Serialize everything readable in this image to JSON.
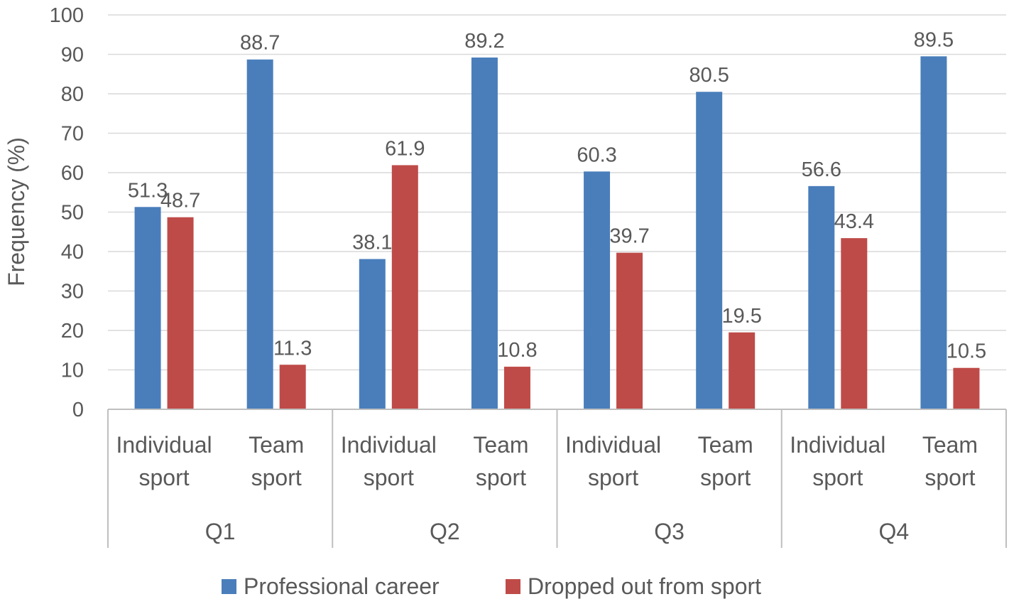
{
  "chart_data": {
    "type": "bar",
    "title": "",
    "xlabel": "",
    "ylabel": "Frequency (%)",
    "ylim": [
      0,
      100
    ],
    "yticks": [
      0,
      10,
      20,
      30,
      40,
      50,
      60,
      70,
      80,
      90,
      100
    ],
    "grid": true,
    "legend_position": "bottom",
    "groups": [
      {
        "label": "Q1",
        "categories": [
          [
            "Individual",
            "sport"
          ],
          [
            "Team",
            "sport"
          ]
        ]
      },
      {
        "label": "Q2",
        "categories": [
          [
            "Individual",
            "sport"
          ],
          [
            "Team",
            "sport"
          ]
        ]
      },
      {
        "label": "Q3",
        "categories": [
          [
            "Individual",
            "sport"
          ],
          [
            "Team",
            "sport"
          ]
        ]
      },
      {
        "label": "Q4",
        "categories": [
          [
            "Individual",
            "sport"
          ],
          [
            "Team",
            "sport"
          ]
        ]
      }
    ],
    "series": [
      {
        "name": "Professional career",
        "color": "#4a7ebb",
        "values": [
          51.3,
          88.7,
          38.1,
          89.2,
          60.3,
          80.5,
          56.6,
          89.5
        ]
      },
      {
        "name": "Dropped out from sport",
        "color": "#be4b48",
        "values": [
          48.7,
          11.3,
          61.9,
          10.8,
          39.7,
          19.5,
          43.4,
          10.5
        ]
      }
    ]
  }
}
